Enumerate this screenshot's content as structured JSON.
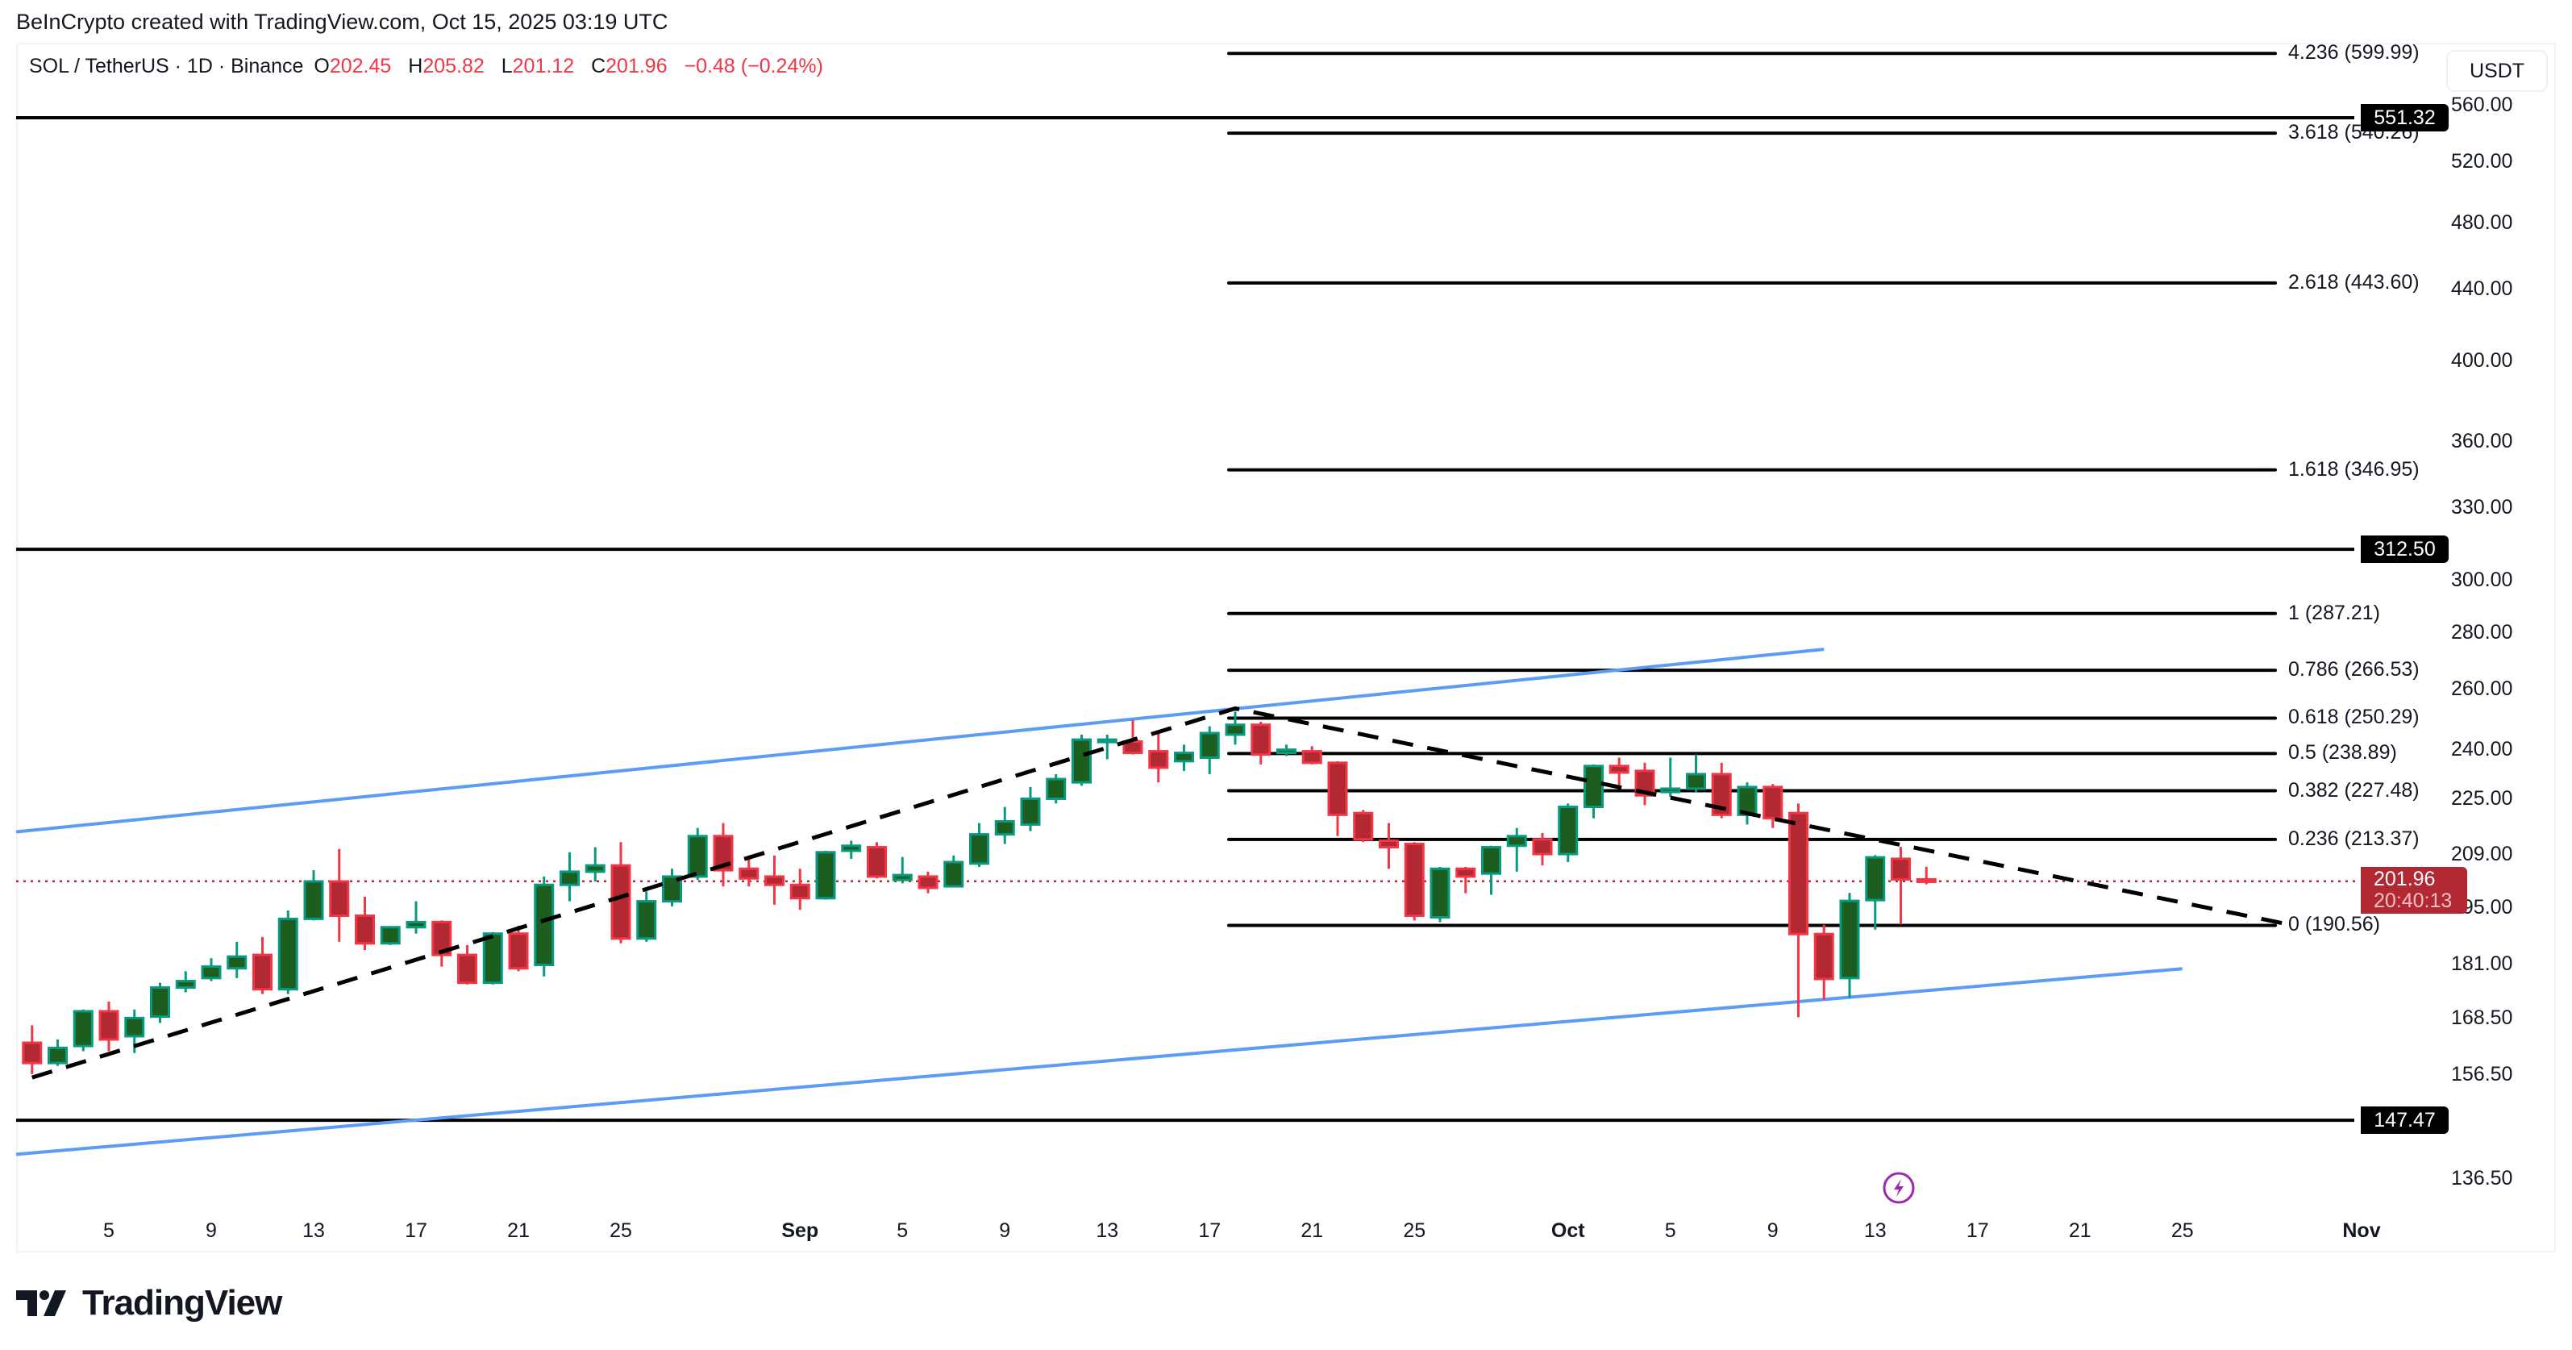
{
  "attribution": "BeInCrypto created with TradingView.com, Oct 15, 2025 03:19 UTC",
  "legend": {
    "symbol": "SOL / TetherUS · 1D · Binance",
    "o_key": "O",
    "o": "202.45",
    "h_key": "H",
    "h": "205.82",
    "l_key": "L",
    "l": "201.12",
    "c_key": "C",
    "c": "201.96",
    "change": "−0.48 (−0.24%)"
  },
  "price_axis": {
    "currency": "USDT",
    "ticks": [
      "560.00",
      "520.00",
      "480.00",
      "440.00",
      "400.00",
      "360.00",
      "330.00",
      "300.00",
      "280.00",
      "260.00",
      "240.00",
      "225.00",
      "209.00",
      "195.00",
      "181.00",
      "168.50",
      "156.50",
      "136.50"
    ]
  },
  "time_axis": {
    "ticks": [
      {
        "label": "5",
        "date": "2025-08-05",
        "bold": false
      },
      {
        "label": "9",
        "date": "2025-08-09",
        "bold": false
      },
      {
        "label": "13",
        "date": "2025-08-13",
        "bold": false
      },
      {
        "label": "17",
        "date": "2025-08-17",
        "bold": false
      },
      {
        "label": "21",
        "date": "2025-08-21",
        "bold": false
      },
      {
        "label": "25",
        "date": "2025-08-25",
        "bold": false
      },
      {
        "label": "Sep",
        "date": "2025-09-01",
        "bold": true
      },
      {
        "label": "5",
        "date": "2025-09-05",
        "bold": false
      },
      {
        "label": "9",
        "date": "2025-09-09",
        "bold": false
      },
      {
        "label": "13",
        "date": "2025-09-13",
        "bold": false
      },
      {
        "label": "17",
        "date": "2025-09-17",
        "bold": false
      },
      {
        "label": "21",
        "date": "2025-09-21",
        "bold": false
      },
      {
        "label": "25",
        "date": "2025-09-25",
        "bold": false
      },
      {
        "label": "Oct",
        "date": "2025-10-01",
        "bold": true
      },
      {
        "label": "5",
        "date": "2025-10-05",
        "bold": false
      },
      {
        "label": "9",
        "date": "2025-10-09",
        "bold": false
      },
      {
        "label": "13",
        "date": "2025-10-13",
        "bold": false
      },
      {
        "label": "17",
        "date": "2025-10-17",
        "bold": false
      },
      {
        "label": "21",
        "date": "2025-10-21",
        "bold": false
      },
      {
        "label": "25",
        "date": "2025-10-25",
        "bold": false
      },
      {
        "label": "Nov",
        "date": "2025-11-01",
        "bold": true
      }
    ]
  },
  "current_price": {
    "value": "201.96",
    "countdown": "20:40:13"
  },
  "horizontal_levels": [
    {
      "price": 551.32,
      "label": "551.32"
    },
    {
      "price": 312.5,
      "label": "312.50"
    },
    {
      "price": 147.47,
      "label": "147.47"
    }
  ],
  "fib_levels": [
    {
      "ratio": "4.236",
      "price": 599.99,
      "label": "4.236 (599.99)"
    },
    {
      "ratio": "3.618",
      "price": 540.26,
      "label": "3.618 (540.26)"
    },
    {
      "ratio": "2.618",
      "price": 443.6,
      "label": "2.618 (443.60)"
    },
    {
      "ratio": "1.618",
      "price": 346.95,
      "label": "1.618 (346.95)"
    },
    {
      "ratio": "1",
      "price": 287.21,
      "label": "1 (287.21)"
    },
    {
      "ratio": "0.786",
      "price": 266.53,
      "label": "0.786 (266.53)"
    },
    {
      "ratio": "0.618",
      "price": 250.29,
      "label": "0.618 (250.29)"
    },
    {
      "ratio": "0.5",
      "price": 238.89,
      "label": "0.5 (238.89)"
    },
    {
      "ratio": "0.382",
      "price": 227.48,
      "label": "0.382 (227.48)"
    },
    {
      "ratio": "0.236",
      "price": 213.37,
      "label": "0.236 (213.37)"
    },
    {
      "ratio": "0",
      "price": 190.56,
      "label": "0 (190.56)"
    }
  ],
  "colors": {
    "up_body": "#1b5e20",
    "up_border": "#089981",
    "down_body": "#b22833",
    "down_border": "#f23645",
    "channel": "#5b9cf6",
    "level": "#000000",
    "current_line": "#b22833",
    "event_icon": "#9c27b0"
  },
  "brand": {
    "name": "TradingView"
  },
  "chart_data": {
    "type": "candlestick",
    "title": "SOL / TetherUS · 1D · Binance",
    "ylabel": "USDT",
    "scale": "log",
    "ylim": [
      130,
      610
    ],
    "x_range": [
      "2025-08-01",
      "2025-11-05"
    ],
    "grid": false,
    "candles": [
      {
        "d": "2025-08-02",
        "o": 163.3,
        "h": 167.1,
        "l": 156.7,
        "c": 159.0
      },
      {
        "d": "2025-08-03",
        "o": 159.0,
        "h": 164.0,
        "l": 158.4,
        "c": 162.2
      },
      {
        "d": "2025-08-04",
        "o": 162.6,
        "h": 170.6,
        "l": 161.5,
        "c": 170.2
      },
      {
        "d": "2025-08-05",
        "o": 170.2,
        "h": 172.4,
        "l": 161.5,
        "c": 164.0
      },
      {
        "d": "2025-08-06",
        "o": 164.7,
        "h": 170.6,
        "l": 161.1,
        "c": 168.7
      },
      {
        "d": "2025-08-07",
        "o": 169.0,
        "h": 176.7,
        "l": 167.6,
        "c": 175.6
      },
      {
        "d": "2025-08-08",
        "o": 175.6,
        "h": 179.4,
        "l": 174.5,
        "c": 177.1
      },
      {
        "d": "2025-08-09",
        "o": 177.8,
        "h": 182.5,
        "l": 177.1,
        "c": 180.5
      },
      {
        "d": "2025-08-10",
        "o": 180.1,
        "h": 186.5,
        "l": 177.8,
        "c": 182.9
      },
      {
        "d": "2025-08-11",
        "o": 183.3,
        "h": 187.7,
        "l": 174.1,
        "c": 175.2
      },
      {
        "d": "2025-08-12",
        "o": 175.2,
        "h": 194.3,
        "l": 174.1,
        "c": 192.2
      },
      {
        "d": "2025-08-13",
        "o": 192.2,
        "h": 204.9,
        "l": 191.8,
        "c": 201.9
      },
      {
        "d": "2025-08-14",
        "o": 201.9,
        "h": 210.7,
        "l": 186.5,
        "c": 193.0
      },
      {
        "d": "2025-08-15",
        "o": 193.0,
        "h": 197.9,
        "l": 184.5,
        "c": 186.1
      },
      {
        "d": "2025-08-16",
        "o": 186.1,
        "h": 190.1,
        "l": 185.7,
        "c": 190.1
      },
      {
        "d": "2025-08-17",
        "o": 190.1,
        "h": 196.7,
        "l": 188.5,
        "c": 191.4
      },
      {
        "d": "2025-08-18",
        "o": 191.4,
        "h": 191.8,
        "l": 180.5,
        "c": 183.3
      },
      {
        "d": "2025-08-19",
        "o": 183.3,
        "h": 185.7,
        "l": 176.3,
        "c": 176.7
      },
      {
        "d": "2025-08-20",
        "o": 176.7,
        "h": 188.9,
        "l": 176.3,
        "c": 188.5
      },
      {
        "d": "2025-08-21",
        "o": 188.5,
        "h": 190.5,
        "l": 179.4,
        "c": 180.1
      },
      {
        "d": "2025-08-22",
        "o": 180.9,
        "h": 203.2,
        "l": 178.2,
        "c": 201.0
      },
      {
        "d": "2025-08-23",
        "o": 201.0,
        "h": 209.8,
        "l": 196.7,
        "c": 204.5
      },
      {
        "d": "2025-08-24",
        "o": 204.5,
        "h": 211.2,
        "l": 201.9,
        "c": 206.2
      },
      {
        "d": "2025-08-25",
        "o": 206.2,
        "h": 212.6,
        "l": 186.1,
        "c": 187.3
      },
      {
        "d": "2025-08-26",
        "o": 187.3,
        "h": 199.3,
        "l": 186.5,
        "c": 196.7
      },
      {
        "d": "2025-08-27",
        "o": 196.7,
        "h": 205.3,
        "l": 195.4,
        "c": 203.2
      },
      {
        "d": "2025-08-28",
        "o": 203.2,
        "h": 216.6,
        "l": 202.3,
        "c": 214.3
      },
      {
        "d": "2025-08-29",
        "o": 214.3,
        "h": 218.0,
        "l": 200.6,
        "c": 204.9
      },
      {
        "d": "2025-08-30",
        "o": 205.3,
        "h": 208.9,
        "l": 200.6,
        "c": 202.7
      },
      {
        "d": "2025-08-31",
        "o": 203.2,
        "h": 208.9,
        "l": 195.8,
        "c": 201.0
      },
      {
        "d": "2025-09-01",
        "o": 201.0,
        "h": 205.3,
        "l": 194.5,
        "c": 197.5
      },
      {
        "d": "2025-09-02",
        "o": 197.5,
        "h": 210.2,
        "l": 197.1,
        "c": 209.8
      },
      {
        "d": "2025-09-03",
        "o": 210.2,
        "h": 213.0,
        "l": 208.0,
        "c": 211.6
      },
      {
        "d": "2025-09-04",
        "o": 211.2,
        "h": 212.6,
        "l": 202.7,
        "c": 203.2
      },
      {
        "d": "2025-09-05",
        "o": 202.3,
        "h": 208.5,
        "l": 201.4,
        "c": 203.6
      },
      {
        "d": "2025-09-06",
        "o": 203.2,
        "h": 204.5,
        "l": 198.8,
        "c": 200.2
      },
      {
        "d": "2025-09-07",
        "o": 200.6,
        "h": 208.9,
        "l": 200.6,
        "c": 207.1
      },
      {
        "d": "2025-09-08",
        "o": 206.7,
        "h": 218.0,
        "l": 205.8,
        "c": 214.8
      },
      {
        "d": "2025-09-09",
        "o": 214.8,
        "h": 222.7,
        "l": 212.1,
        "c": 218.5
      },
      {
        "d": "2025-09-10",
        "o": 217.6,
        "h": 228.6,
        "l": 215.7,
        "c": 225.1
      },
      {
        "d": "2025-09-11",
        "o": 225.1,
        "h": 232.5,
        "l": 223.7,
        "c": 231.0
      },
      {
        "d": "2025-09-12",
        "o": 230.0,
        "h": 244.9,
        "l": 229.0,
        "c": 243.3
      },
      {
        "d": "2025-09-13",
        "o": 242.7,
        "h": 244.9,
        "l": 237.1,
        "c": 243.3
      },
      {
        "d": "2025-09-14",
        "o": 242.7,
        "h": 249.6,
        "l": 238.6,
        "c": 239.1
      },
      {
        "d": "2025-09-15",
        "o": 239.6,
        "h": 245.4,
        "l": 230.0,
        "c": 234.5
      },
      {
        "d": "2025-09-16",
        "o": 236.5,
        "h": 241.7,
        "l": 233.5,
        "c": 239.1
      },
      {
        "d": "2025-09-17",
        "o": 237.6,
        "h": 247.6,
        "l": 232.5,
        "c": 245.4
      },
      {
        "d": "2025-09-18",
        "o": 244.9,
        "h": 252.4,
        "l": 241.7,
        "c": 248.1
      },
      {
        "d": "2025-09-19",
        "o": 248.1,
        "h": 249.1,
        "l": 235.5,
        "c": 238.6
      },
      {
        "d": "2025-09-20",
        "o": 239.1,
        "h": 241.7,
        "l": 238.1,
        "c": 240.1
      },
      {
        "d": "2025-09-21",
        "o": 239.6,
        "h": 241.2,
        "l": 235.5,
        "c": 236.0
      },
      {
        "d": "2025-09-22",
        "o": 236.0,
        "h": 236.5,
        "l": 214.3,
        "c": 220.4
      },
      {
        "d": "2025-09-23",
        "o": 220.9,
        "h": 221.8,
        "l": 212.6,
        "c": 213.4
      },
      {
        "d": "2025-09-24",
        "o": 213.0,
        "h": 218.0,
        "l": 205.3,
        "c": 211.2
      },
      {
        "d": "2025-09-25",
        "o": 212.1,
        "h": 212.6,
        "l": 191.8,
        "c": 193.0
      },
      {
        "d": "2025-09-26",
        "o": 192.6,
        "h": 205.8,
        "l": 191.4,
        "c": 205.3
      },
      {
        "d": "2025-09-27",
        "o": 205.3,
        "h": 205.8,
        "l": 198.8,
        "c": 203.2
      },
      {
        "d": "2025-09-28",
        "o": 204.0,
        "h": 211.6,
        "l": 198.4,
        "c": 211.2
      },
      {
        "d": "2025-09-29",
        "o": 211.6,
        "h": 216.6,
        "l": 204.5,
        "c": 214.3
      },
      {
        "d": "2025-09-30",
        "o": 213.4,
        "h": 215.2,
        "l": 206.2,
        "c": 209.3
      },
      {
        "d": "2025-10-01",
        "o": 209.3,
        "h": 223.7,
        "l": 207.1,
        "c": 222.7
      },
      {
        "d": "2025-10-02",
        "o": 222.7,
        "h": 235.5,
        "l": 219.4,
        "c": 235.0
      },
      {
        "d": "2025-10-03",
        "o": 235.0,
        "h": 237.6,
        "l": 229.0,
        "c": 233.0
      },
      {
        "d": "2025-10-04",
        "o": 233.5,
        "h": 236.0,
        "l": 223.2,
        "c": 226.1
      },
      {
        "d": "2025-10-05",
        "o": 227.1,
        "h": 237.6,
        "l": 225.6,
        "c": 228.1
      },
      {
        "d": "2025-10-06",
        "o": 228.1,
        "h": 238.6,
        "l": 227.1,
        "c": 232.5
      },
      {
        "d": "2025-10-07",
        "o": 232.5,
        "h": 236.0,
        "l": 219.4,
        "c": 220.4
      },
      {
        "d": "2025-10-08",
        "o": 220.4,
        "h": 230.0,
        "l": 217.6,
        "c": 228.6
      },
      {
        "d": "2025-10-09",
        "o": 228.6,
        "h": 229.5,
        "l": 216.6,
        "c": 219.4
      },
      {
        "d": "2025-10-10",
        "o": 220.9,
        "h": 223.7,
        "l": 168.9,
        "c": 188.4
      },
      {
        "d": "2025-10-11",
        "o": 188.4,
        "h": 190.7,
        "l": 172.8,
        "c": 177.6
      },
      {
        "d": "2025-10-12",
        "o": 177.8,
        "h": 198.9,
        "l": 173.2,
        "c": 196.8
      },
      {
        "d": "2025-10-13",
        "o": 197.0,
        "h": 209.0,
        "l": 189.5,
        "c": 208.4
      },
      {
        "d": "2025-10-14",
        "o": 208.0,
        "h": 211.3,
        "l": 190.8,
        "c": 202.45
      },
      {
        "d": "2025-10-15",
        "o": 202.45,
        "h": 205.82,
        "l": 201.12,
        "c": 201.96
      }
    ],
    "drawings": {
      "ascending_channel": {
        "upper": [
          {
            "d": "2025-08-01",
            "p": 215.5
          },
          {
            "d": "2025-10-11",
            "p": 274.0
          }
        ],
        "lower": [
          {
            "d": "2025-08-01",
            "p": 141.0
          },
          {
            "d": "2025-10-25",
            "p": 180.0
          }
        ]
      },
      "dashed_trendline": [
        {
          "d": "2025-08-02",
          "p": 156.0
        },
        {
          "d": "2025-09-18",
          "p": 253.5
        },
        {
          "d": "2025-10-29",
          "p": 191.0
        }
      ],
      "fib_extension_x_range": [
        "2025-09-18",
        "2025-10-29"
      ]
    }
  }
}
